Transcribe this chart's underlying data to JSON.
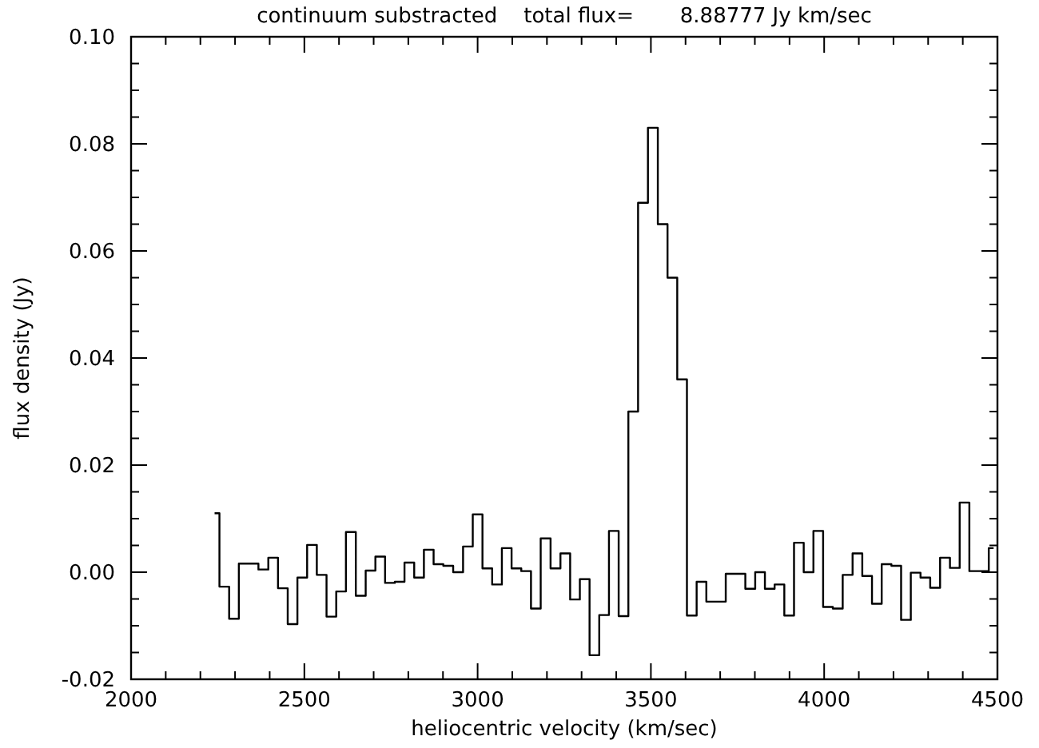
{
  "chart_data": {
    "type": "step",
    "title": "continuum substracted    total flux=       8.88777 Jy km/sec",
    "xlabel": "heliocentric velocity (km/sec)",
    "ylabel": "flux density (Jy)",
    "x": [
      2241,
      2269,
      2297,
      2325,
      2353,
      2382,
      2410,
      2438,
      2466,
      2494,
      2522,
      2550,
      2578,
      2606,
      2634,
      2663,
      2691,
      2719,
      2747,
      2775,
      2803,
      2831,
      2859,
      2887,
      2915,
      2944,
      2972,
      3000,
      3028,
      3056,
      3084,
      3112,
      3140,
      3168,
      3196,
      3225,
      3253,
      3281,
      3309,
      3337,
      3365,
      3393,
      3421,
      3449,
      3477,
      3506,
      3534,
      3562,
      3590,
      3618,
      3646,
      3674,
      3702,
      3730,
      3758,
      3787,
      3815,
      3843,
      3871,
      3899,
      3927,
      3955,
      3983,
      4011,
      4039,
      4068,
      4096,
      4124,
      4152,
      4180,
      4208,
      4236,
      4264,
      4292,
      4320,
      4349,
      4377,
      4405,
      4433,
      4461,
      4489
    ],
    "series": [
      {
        "color": "#000000",
        "values": [
          0.011,
          -0.0027,
          -0.0087,
          0.0016,
          0.0016,
          0.0005,
          0.0027,
          -0.003,
          -0.0097,
          -0.001,
          0.0051,
          -0.0005,
          -0.0083,
          -0.0036,
          0.0075,
          -0.0044,
          0.0003,
          0.0029,
          -0.002,
          -0.0018,
          0.0018,
          -0.001,
          0.0042,
          0.0015,
          0.0012,
          0.0,
          0.0048,
          0.0108,
          0.0007,
          -0.0023,
          0.0045,
          0.0007,
          0.0002,
          -0.0068,
          0.0063,
          0.0007,
          0.0035,
          -0.0051,
          -0.0013,
          -0.0155,
          -0.008,
          0.0077,
          -0.0082,
          0.03,
          0.069,
          0.083,
          0.065,
          0.055,
          0.036,
          -0.0081,
          -0.0018,
          -0.0055,
          -0.0055,
          -0.0003,
          -0.0003,
          -0.0031,
          0.0,
          -0.0031,
          -0.0023,
          -0.0081,
          0.0055,
          0.0,
          0.0077,
          -0.0065,
          -0.0068,
          -0.0005,
          0.0035,
          -0.0007,
          -0.0059,
          0.0015,
          0.0012,
          -0.0089,
          -0.0001,
          -0.001,
          -0.0029,
          0.0027,
          0.0008,
          0.013,
          0.0002,
          0.0002,
          0.0045
        ]
      }
    ],
    "xlim": [
      2000,
      4500
    ],
    "xticks": [
      2000,
      {
        "value": 2100,
        "label": null
      },
      {
        "value": 2200,
        "label": null
      },
      {
        "value": 2300,
        "label": null
      },
      {
        "value": 2400,
        "label": null
      },
      2500,
      {
        "value": 2600,
        "label": null
      },
      {
        "value": 2700,
        "label": null
      },
      {
        "value": 2800,
        "label": null
      },
      {
        "value": 2900,
        "label": null
      },
      3000,
      {
        "value": 3100,
        "label": null
      },
      {
        "value": 3200,
        "label": null
      },
      {
        "value": 3300,
        "label": null
      },
      {
        "value": 3400,
        "label": null
      },
      3500,
      {
        "value": 3600,
        "label": null
      },
      {
        "value": 3700,
        "label": null
      },
      {
        "value": 3800,
        "label": null
      },
      {
        "value": 3900,
        "label": null
      },
      4000,
      {
        "value": 4100,
        "label": null
      },
      {
        "value": 4200,
        "label": null
      },
      {
        "value": 4300,
        "label": null
      },
      {
        "value": 4400,
        "label": null
      },
      4500
    ],
    "ylim": [
      -0.02,
      0.1
    ],
    "yticks": [
      {
        "value": -0.02,
        "label": "-0.02"
      },
      {
        "value": -0.015,
        "label": null
      },
      {
        "value": -0.01,
        "label": null
      },
      {
        "value": -0.005,
        "label": null
      },
      {
        "value": 0,
        "label": "0.00"
      },
      {
        "value": 0.005,
        "label": null
      },
      {
        "value": 0.01,
        "label": null
      },
      {
        "value": 0.015,
        "label": null
      },
      {
        "value": 0.02,
        "label": "0.02"
      },
      {
        "value": 0.025,
        "label": null
      },
      {
        "value": 0.03,
        "label": null
      },
      {
        "value": 0.035,
        "label": null
      },
      {
        "value": 0.04,
        "label": "0.04"
      },
      {
        "value": 0.045,
        "label": null
      },
      {
        "value": 0.05,
        "label": null
      },
      {
        "value": 0.055,
        "label": null
      },
      {
        "value": 0.06,
        "label": "0.06"
      },
      {
        "value": 0.065,
        "label": null
      },
      {
        "value": 0.07,
        "label": null
      },
      {
        "value": 0.075,
        "label": null
      },
      {
        "value": 0.08,
        "label": "0.08"
      },
      {
        "value": 0.085,
        "label": null
      },
      {
        "value": 0.09,
        "label": null
      },
      {
        "value": 0.095,
        "label": null
      },
      {
        "value": 0.1,
        "label": "0.10"
      }
    ],
    "grid": false
  }
}
